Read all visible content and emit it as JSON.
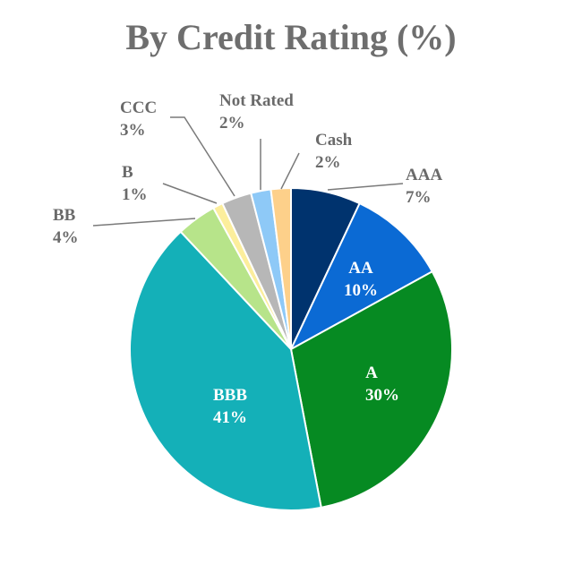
{
  "chart_data": {
    "type": "pie",
    "title": "By Credit Rating (%)",
    "slices": [
      {
        "label": "AAA",
        "value": 7,
        "value_label": "7%",
        "color": "#00336e"
      },
      {
        "label": "AA",
        "value": 10,
        "value_label": "10%",
        "color": "#0b6ad4"
      },
      {
        "label": "A",
        "value": 30,
        "value_label": "30%",
        "color": "#068a22"
      },
      {
        "label": "BBB",
        "value": 41,
        "value_label": "41%",
        "color": "#14b0b8"
      },
      {
        "label": "BB",
        "value": 4,
        "value_label": "4%",
        "color": "#b7e48a"
      },
      {
        "label": "B",
        "value": 1,
        "value_label": "1%",
        "color": "#fcee9c"
      },
      {
        "label": "CCC",
        "value": 3,
        "value_label": "3%",
        "color": "#b7b7b7"
      },
      {
        "label": "Not Rated",
        "value": 2,
        "value_label": "2%",
        "color": "#8ec9f7"
      },
      {
        "label": "Cash",
        "value": 2,
        "value_label": "2%",
        "color": "#fdd08a"
      }
    ],
    "legend": "none"
  }
}
